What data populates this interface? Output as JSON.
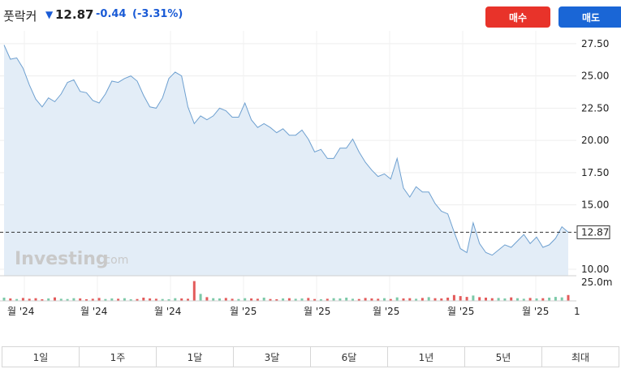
{
  "quote": {
    "name": "풋락커",
    "direction_icon": "arrow-down-icon",
    "price": "12.87",
    "change": "-0.44",
    "change_pct": "(-3.31%)",
    "accent_color": "#1a5bd6"
  },
  "actions": {
    "buy_label": "매수",
    "sell_label": "매도",
    "buy_color": "#e8332a",
    "sell_color": "#1a66d6"
  },
  "chart_data": {
    "type": "area",
    "watermark_main": "Investing",
    "watermark_suffix": ".com",
    "ylim": [
      9.5,
      28.5
    ],
    "yticks": [
      "27.50",
      "25.00",
      "22.50",
      "20.00",
      "17.50",
      "15.00",
      "10.00"
    ],
    "last_price_label": "12.87",
    "volume_label": "25.0m",
    "xticks": [
      "월 '24",
      "월 '24",
      "월 '24",
      "월 '25",
      "월 '25",
      "월 '25",
      "월 '25",
      "월 '25",
      "1"
    ],
    "values": [
      27.4,
      26.3,
      26.4,
      25.6,
      24.3,
      23.2,
      22.6,
      23.3,
      23.0,
      23.6,
      24.5,
      24.7,
      23.8,
      23.7,
      23.1,
      22.9,
      23.6,
      24.6,
      24.5,
      24.8,
      25.0,
      24.6,
      23.5,
      22.6,
      22.5,
      23.3,
      24.8,
      25.3,
      25.0,
      22.6,
      21.3,
      21.9,
      21.6,
      21.9,
      22.5,
      22.3,
      21.8,
      21.8,
      22.9,
      21.6,
      21.0,
      21.3,
      21.0,
      20.6,
      20.9,
      20.4,
      20.4,
      20.8,
      20.1,
      19.1,
      19.3,
      18.6,
      18.6,
      19.4,
      19.4,
      20.1,
      19.1,
      18.3,
      17.7,
      17.2,
      17.4,
      17.0,
      18.6,
      16.3,
      15.6,
      16.4,
      16.0,
      16.0,
      15.1,
      14.5,
      14.3,
      12.9,
      11.6,
      11.3,
      13.6,
      12.0,
      11.3,
      11.1,
      11.5,
      11.9,
      11.7,
      12.2,
      12.7,
      12.0,
      12.5,
      11.7,
      11.9,
      12.4,
      13.3,
      12.87
    ],
    "volumes": [
      1.2,
      0.9,
      0.7,
      1.1,
      0.8,
      1.0,
      0.6,
      0.9,
      1.3,
      0.8,
      0.7,
      1.0,
      0.9,
      0.6,
      0.8,
      1.1,
      0.7,
      0.9,
      0.8,
      1.0,
      0.6,
      0.7,
      1.2,
      0.9,
      0.8,
      0.7,
      0.6,
      1.0,
      0.9,
      0.8,
      7.4,
      2.6,
      1.4,
      1.0,
      0.9,
      1.1,
      0.8,
      0.7,
      1.0,
      0.9,
      0.8,
      1.2,
      0.7,
      0.6,
      0.9,
      1.0,
      0.8,
      0.9,
      1.1,
      0.7,
      0.6,
      0.8,
      1.0,
      0.9,
      1.2,
      0.8,
      0.7,
      1.1,
      0.9,
      0.8,
      1.0,
      0.7,
      1.3,
      0.9,
      1.0,
      0.8,
      1.1,
      1.4,
      1.0,
      0.9,
      1.2,
      2.2,
      1.8,
      1.5,
      2.0,
      1.4,
      1.2,
      1.0,
      1.1,
      0.9,
      1.3,
      1.0,
      0.8,
      1.1,
      0.9,
      1.0,
      1.2,
      1.5,
      1.3,
      2.2
    ],
    "vol_max": 8.5,
    "up_color": "#7cc9a8",
    "down_color": "#e35b5b",
    "line_color": "#6ea0d0",
    "fill_color": "#e3edf7"
  },
  "periods": [
    "1일",
    "1주",
    "1달",
    "3달",
    "6달",
    "1년",
    "5년",
    "최대"
  ]
}
